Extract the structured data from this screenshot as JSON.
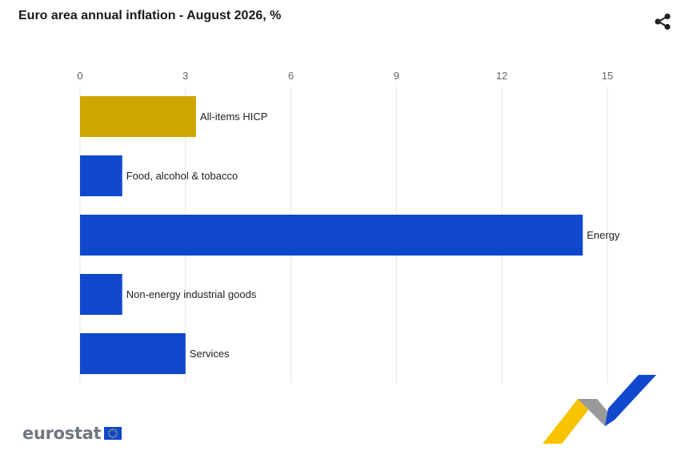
{
  "header": {
    "title": "Euro area annual inflation - August 2026, %",
    "share_icon": "share-icon"
  },
  "footer": {
    "logo_text": "eurostat",
    "flag_icon": "eu-flag-icon"
  },
  "colors": {
    "highlight": "#CFA600",
    "bar": "#0F48CC",
    "grid": "#e3e3e3",
    "tick_text": "#666666",
    "label_text": "#222222"
  },
  "chart_data": {
    "type": "bar",
    "orientation": "horizontal",
    "title": "Euro area annual inflation - August 2026, %",
    "categories": [
      "All-items HICP",
      "Food, alcohol & tobacco",
      "Energy",
      "Non-energy industrial goods",
      "Services"
    ],
    "values": [
      3.3,
      1.2,
      14.3,
      1.2,
      3.0
    ],
    "highlight_category": "All-items HICP",
    "xlim": [
      0,
      15
    ],
    "xticks": [
      0,
      3,
      6,
      9,
      12,
      15
    ],
    "xaxis_position": "top",
    "grid": "vertical",
    "legend": "none"
  }
}
